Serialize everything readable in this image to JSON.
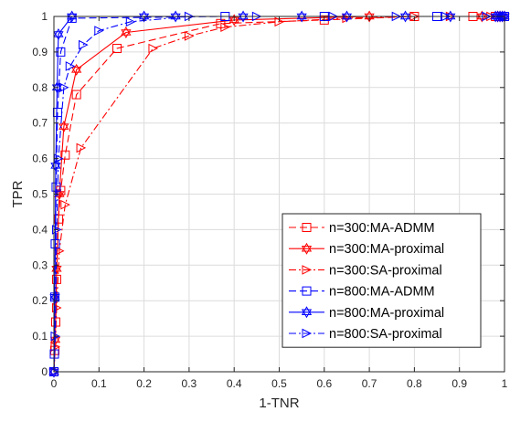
{
  "chart_data": {
    "type": "line",
    "xlabel": "1-TNR",
    "ylabel": "TPR",
    "xlim": [
      0,
      1
    ],
    "ylim": [
      0,
      1
    ],
    "xticks": [
      "0",
      "0.1",
      "0.2",
      "0.3",
      "0.4",
      "0.5",
      "0.6",
      "0.7",
      "0.8",
      "0.9",
      "1"
    ],
    "yticks": [
      "0",
      "0.1",
      "0.2",
      "0.3",
      "0.4",
      "0.5",
      "0.6",
      "0.7",
      "0.8",
      "0.9",
      "1"
    ],
    "grid": true,
    "legend_position": "bottom-right",
    "series": [
      {
        "name": "n=300:MA-ADMM",
        "color": "#ff0000",
        "line_style": "dashed",
        "marker": "square",
        "x": [
          0,
          0.002,
          0.004,
          0.006,
          0.01,
          0.015,
          0.025,
          0.05,
          0.14,
          0.37,
          0.6,
          0.8,
          0.93,
          0.98,
          1
        ],
        "y": [
          0,
          0.06,
          0.14,
          0.26,
          0.43,
          0.51,
          0.61,
          0.78,
          0.91,
          0.98,
          0.99,
          1,
          1,
          1,
          1
        ]
      },
      {
        "name": "n=300:MA-proximal",
        "color": "#ff0000",
        "line_style": "solid",
        "marker": "hexagram",
        "x": [
          0,
          0.003,
          0.006,
          0.012,
          0.022,
          0.05,
          0.16,
          0.4,
          0.7,
          0.95,
          1
        ],
        "y": [
          0,
          0.09,
          0.29,
          0.5,
          0.69,
          0.85,
          0.955,
          0.99,
          1,
          1,
          1
        ],
        "marker_x": [
          0,
          0.003,
          0.006,
          0.012,
          0.022,
          0.05,
          0.16,
          0.4,
          0.7,
          0.95,
          0.985,
          0.99,
          0.995,
          1
        ],
        "marker_y": [
          0,
          0.09,
          0.29,
          0.5,
          0.69,
          0.85,
          0.955,
          0.99,
          1,
          1,
          1,
          1,
          1,
          1
        ]
      },
      {
        "name": "n=300:SA-proximal",
        "color": "#ff0000",
        "line_style": "dashdot",
        "marker": "triangle-right",
        "x": [
          0,
          0.003,
          0.006,
          0.012,
          0.025,
          0.06,
          0.22,
          0.3,
          0.38,
          0.5,
          0.65,
          0.8,
          0.88,
          0.97,
          1
        ],
        "y": [
          0,
          0.07,
          0.18,
          0.34,
          0.47,
          0.63,
          0.91,
          0.945,
          0.97,
          0.985,
          0.995,
          1,
          1,
          1,
          1
        ]
      },
      {
        "name": "n=800:MA-ADMM",
        "color": "#0000ff",
        "line_style": "dashed",
        "marker": "square",
        "x": [
          0,
          0.001,
          0.002,
          0.003,
          0.005,
          0.008,
          0.015,
          0.04,
          0.38,
          0.6,
          0.85,
          1
        ],
        "y": [
          0,
          0.05,
          0.21,
          0.36,
          0.52,
          0.73,
          0.9,
          0.995,
          1,
          1,
          1,
          1
        ]
      },
      {
        "name": "n=800:MA-proximal",
        "color": "#0000ff",
        "line_style": "solid",
        "marker": "hexagram",
        "x": [
          0,
          0.002,
          0.004,
          0.007,
          0.01,
          0.04,
          0.2,
          0.45,
          0.7,
          0.9,
          1
        ],
        "y": [
          0,
          0.21,
          0.58,
          0.8,
          0.95,
          1,
          1,
          1,
          1,
          1,
          1
        ],
        "marker_x": [
          0,
          0.002,
          0.004,
          0.007,
          0.01,
          0.04,
          0.2,
          0.27,
          0.42,
          0.55,
          0.65,
          0.78,
          0.88,
          0.98,
          0.985,
          0.99,
          0.995,
          1
        ],
        "marker_y": [
          0,
          0.21,
          0.58,
          0.8,
          0.95,
          1,
          1,
          1,
          1,
          1,
          1,
          1,
          1,
          1,
          1,
          1,
          1,
          1
        ]
      },
      {
        "name": "n=800:SA-proximal",
        "color": "#0000ff",
        "line_style": "dashdot",
        "marker": "triangle-right",
        "x": [
          0,
          0.003,
          0.006,
          0.01,
          0.022,
          0.036,
          0.065,
          0.1,
          0.17,
          0.3,
          0.45,
          0.62,
          0.76,
          0.87,
          0.96,
          1
        ],
        "y": [
          0,
          0.1,
          0.4,
          0.6,
          0.8,
          0.86,
          0.92,
          0.96,
          0.985,
          1,
          1,
          1,
          1,
          1,
          1,
          1
        ]
      }
    ]
  }
}
